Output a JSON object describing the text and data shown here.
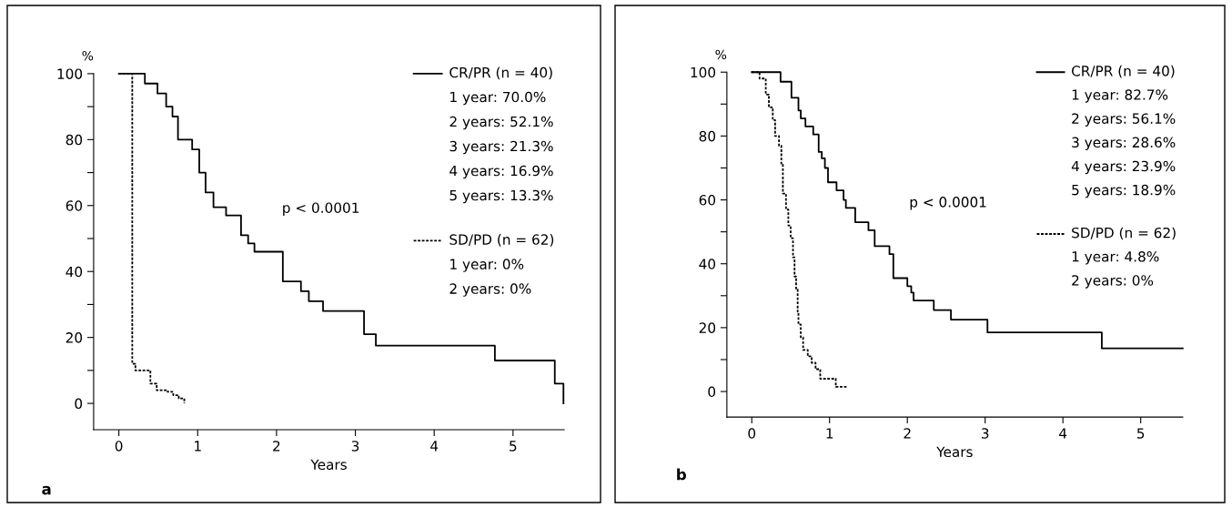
{
  "chart_data": [
    {
      "type": "step",
      "xlabel": "Years",
      "ylabel": "%",
      "xlim": [
        -0.32,
        5.65
      ],
      "ylim": [
        -8,
        100
      ],
      "xticks": [
        0,
        1,
        2,
        3,
        4,
        5
      ],
      "yticks": [
        0,
        {
          "value": 10,
          "label": null
        },
        20,
        {
          "value": 30,
          "label": null
        },
        40,
        {
          "value": 50,
          "label": null
        },
        60,
        {
          "value": 70,
          "label": null
        },
        80,
        {
          "value": 90,
          "label": null
        },
        100
      ],
      "grid": false,
      "legend": "top right",
      "marker": "none",
      "series": [
        {
          "name": "CR/PR (n = 40)",
          "color": "#000000",
          "line_style": "solid",
          "x": [
            0,
            0.33,
            0.49,
            0.6,
            0.68,
            0.75,
            0.93,
            1.02,
            1.1,
            1.2,
            1.36,
            1.55,
            1.64,
            1.72,
            2.08,
            2.31,
            2.41,
            2.59,
            3.11,
            3.26,
            4.77,
            5.53,
            5.64
          ],
          "values": [
            100,
            97,
            94,
            90,
            87,
            80,
            77,
            70,
            64,
            59.5,
            57,
            51,
            48.5,
            46,
            37,
            34,
            31,
            28,
            21,
            17.5,
            13,
            6,
            0
          ]
        },
        {
          "name": "SD/PD (n = 62)",
          "color": "#000000",
          "line_style": "dotted",
          "x": [
            0,
            0.17,
            0.21,
            0.4,
            0.48,
            0.62,
            0.69,
            0.76,
            0.83
          ],
          "values": [
            100,
            12,
            10,
            6,
            4,
            3.5,
            2.5,
            1.5,
            0
          ]
        }
      ],
      "annotations": [
        "1 year: 70.0%",
        "2 years: 52.1%",
        "3 years: 21.3%",
        "4 years: 16.9%",
        "5 years: 13.3%",
        "1 year: 0%",
        "2 years: 0%",
        "p < 0.0001",
        "a"
      ]
    },
    {
      "type": "step",
      "xlabel": "Years",
      "ylabel": "%",
      "xlim": [
        -0.32,
        5.54
      ],
      "ylim": [
        -8,
        100
      ],
      "xticks": [
        0,
        1,
        2,
        3,
        4,
        5
      ],
      "yticks": [
        0,
        {
          "value": 10,
          "label": null
        },
        20,
        {
          "value": 30,
          "label": null
        },
        40,
        {
          "value": 50,
          "label": null
        },
        60,
        {
          "value": 70,
          "label": null
        },
        80,
        {
          "value": 90,
          "label": null
        },
        100
      ],
      "grid": false,
      "legend": "top right",
      "marker": "none",
      "series": [
        {
          "name": "CR/PR (n = 40)",
          "color": "#000000",
          "line_style": "solid",
          "x": [
            0,
            0.37,
            0.51,
            0.6,
            0.63,
            0.69,
            0.79,
            0.86,
            0.9,
            0.94,
            0.98,
            1.09,
            1.18,
            1.21,
            1.33,
            1.5,
            1.58,
            1.77,
            1.82,
            2.0,
            2.05,
            2.08,
            2.34,
            2.56,
            3.03,
            4.5,
            5.54
          ],
          "values": [
            100,
            97,
            92,
            88,
            85.5,
            83,
            80.5,
            75,
            73,
            70,
            65.5,
            63,
            60,
            57.5,
            53,
            50.5,
            45.5,
            43,
            35.5,
            33,
            31,
            28.5,
            25.5,
            22.5,
            18.5,
            13.5,
            13.5
          ]
        },
        {
          "name": "SD/PD (n = 62)",
          "color": "#000000",
          "line_style": "dotted",
          "x": [
            0,
            0.1,
            0.18,
            0.22,
            0.27,
            0.3,
            0.35,
            0.38,
            0.4,
            0.44,
            0.47,
            0.5,
            0.53,
            0.55,
            0.57,
            0.59,
            0.6,
            0.63,
            0.66,
            0.72,
            0.77,
            0.82,
            0.88,
            1.08,
            1.23
          ],
          "values": [
            100,
            98,
            93,
            89,
            85,
            80,
            77,
            71,
            62,
            57,
            52,
            48,
            42,
            36,
            32,
            25,
            21,
            17,
            13,
            11,
            9,
            7,
            4,
            1.5,
            1.5
          ]
        }
      ],
      "annotations": [
        "1 year: 82.7%",
        "2 years: 56.1%",
        "3 years: 28.6%",
        "4 years: 23.9%",
        "5 years: 18.9%",
        "1 year: 4.8%",
        "2 years: 0%",
        "p < 0.0001",
        "b"
      ]
    }
  ]
}
